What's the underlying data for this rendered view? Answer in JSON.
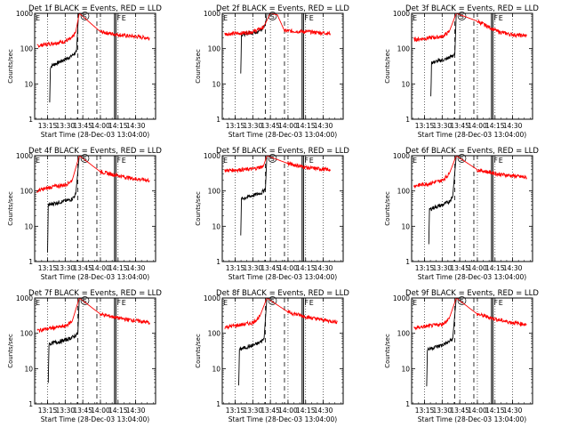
{
  "figure": {
    "time_tick_labels": [
      "13:15",
      "13:30",
      "13:45",
      "14:00",
      "14:15",
      "14:30"
    ],
    "time_tick_values": [
      13.25,
      13.5,
      13.75,
      14.0,
      14.25,
      14.5
    ],
    "y_tick_labels": [
      "1",
      "10",
      "100",
      "1000"
    ],
    "y_tick_values": [
      1,
      10,
      100,
      1000
    ],
    "ylabel": "Counts/sec",
    "xlabel": "Start Time (28-Dec-03 13:04:00)",
    "annotations": {
      "S": 13.78,
      "F1": 14.2,
      "F2": 14.22,
      "E": 14.3
    },
    "colors": {
      "events": "#000000",
      "lld": "#ff0000",
      "axes": "#000000",
      "background": "#ffffff"
    }
  },
  "chart_data": [
    {
      "type": "line",
      "title": "Det 1f BLACK = Events, RED = LLD",
      "xlabel": "Start Time (28-Dec-03 13:04:00)",
      "ylabel": "Counts/sec",
      "xlim": [
        13.067,
        14.783
      ],
      "ylim": [
        1,
        1000
      ],
      "yscale": "log",
      "series": [
        {
          "name": "Events",
          "color": "#000000",
          "x": [
            13.28,
            13.29,
            13.33,
            13.4,
            13.45,
            13.5,
            13.58,
            13.62,
            13.66,
            13.69
          ],
          "y": [
            3,
            30,
            35,
            40,
            45,
            50,
            60,
            70,
            80,
            1000
          ]
        },
        {
          "name": "LLD",
          "color": "#ff0000",
          "x": [
            13.1,
            13.3,
            13.5,
            13.6,
            13.65,
            13.7,
            14.0,
            14.3,
            14.5,
            14.7
          ],
          "y": [
            120,
            140,
            160,
            200,
            300,
            1000,
            300,
            240,
            220,
            200
          ]
        }
      ]
    },
    {
      "type": "line",
      "title": "Det 2f BLACK = Events, RED = LLD",
      "xlabel": "Start Time (28-Dec-03 13:04:00)",
      "ylabel": "Counts/sec",
      "xlim": [
        13.067,
        14.783
      ],
      "ylim": [
        1,
        1000
      ],
      "yscale": "log",
      "series": [
        {
          "name": "Events",
          "color": "#000000",
          "x": [
            13.33,
            13.34,
            13.45,
            13.55,
            13.63,
            13.68,
            13.7
          ],
          "y": [
            20,
            250,
            280,
            300,
            350,
            500,
            1000
          ]
        },
        {
          "name": "LLD",
          "color": "#ff0000",
          "x": [
            13.1,
            13.3,
            13.5,
            13.65,
            13.75,
            13.85,
            13.95,
            14.3,
            14.6
          ],
          "y": [
            260,
            270,
            300,
            400,
            1000,
            900,
            320,
            300,
            270
          ]
        }
      ]
    },
    {
      "type": "line",
      "title": "Det 3f BLACK = Events, RED = LLD",
      "xlabel": "Start Time (28-Dec-03 13:04:00)",
      "ylabel": "Counts/sec",
      "xlim": [
        13.067,
        14.783
      ],
      "ylim": [
        1,
        1000
      ],
      "yscale": "log",
      "series": [
        {
          "name": "Events",
          "color": "#000000",
          "x": [
            13.34,
            13.35,
            13.45,
            13.55,
            13.63,
            13.68,
            13.7
          ],
          "y": [
            4,
            40,
            45,
            50,
            60,
            70,
            1000
          ]
        },
        {
          "name": "LLD",
          "color": "#ff0000",
          "x": [
            13.1,
            13.3,
            13.5,
            13.6,
            13.7,
            14.0,
            14.3,
            14.5,
            14.7
          ],
          "y": [
            180,
            200,
            220,
            300,
            1000,
            600,
            300,
            250,
            230
          ]
        }
      ]
    },
    {
      "type": "line",
      "title": "Det 4f BLACK = Events, RED = LLD",
      "xlabel": "Start Time (28-Dec-03 13:04:00)",
      "ylabel": "Counts/sec",
      "xlim": [
        13.067,
        14.783
      ],
      "ylim": [
        1,
        1000
      ],
      "yscale": "log",
      "series": [
        {
          "name": "Events",
          "color": "#000000",
          "x": [
            13.25,
            13.26,
            13.35,
            13.45,
            13.55,
            13.6,
            13.65,
            13.7
          ],
          "y": [
            2,
            40,
            45,
            50,
            55,
            60,
            80,
            1000
          ]
        },
        {
          "name": "LLD",
          "color": "#ff0000",
          "x": [
            13.1,
            13.3,
            13.5,
            13.6,
            13.7,
            14.0,
            14.3,
            14.5,
            14.7
          ],
          "y": [
            100,
            130,
            150,
            200,
            1000,
            350,
            260,
            220,
            200
          ]
        }
      ]
    },
    {
      "type": "line",
      "title": "Det 5f BLACK = Events, RED = LLD",
      "xlabel": "Start Time (28-Dec-03 13:04:00)",
      "ylabel": "Counts/sec",
      "xlim": [
        13.067,
        14.783
      ],
      "ylim": [
        1,
        1000
      ],
      "yscale": "log",
      "series": [
        {
          "name": "Events",
          "color": "#000000",
          "x": [
            13.33,
            13.34,
            13.45,
            13.55,
            13.63,
            13.68,
            13.7
          ],
          "y": [
            5,
            60,
            70,
            80,
            90,
            120,
            1000
          ]
        },
        {
          "name": "LLD",
          "color": "#ff0000",
          "x": [
            13.1,
            13.3,
            13.5,
            13.65,
            13.7,
            14.0,
            14.3,
            14.6
          ],
          "y": [
            380,
            400,
            420,
            500,
            1000,
            600,
            450,
            400
          ]
        }
      ]
    },
    {
      "type": "line",
      "title": "Det 6f BLACK = Events, RED = LLD",
      "xlabel": "Start Time (28-Dec-03 13:04:00)",
      "ylabel": "Counts/sec",
      "xlim": [
        13.067,
        14.783
      ],
      "ylim": [
        1,
        1000
      ],
      "yscale": "log",
      "series": [
        {
          "name": "Events",
          "color": "#000000",
          "x": [
            13.31,
            13.32,
            13.4,
            13.5,
            13.6,
            13.65,
            13.7
          ],
          "y": [
            3,
            30,
            35,
            40,
            50,
            70,
            1000
          ]
        },
        {
          "name": "LLD",
          "color": "#ff0000",
          "x": [
            13.1,
            13.3,
            13.5,
            13.6,
            13.7,
            14.0,
            14.3,
            14.5,
            14.7
          ],
          "y": [
            140,
            160,
            200,
            300,
            1000,
            400,
            300,
            270,
            240
          ]
        }
      ]
    },
    {
      "type": "line",
      "title": "Det 7f BLACK = Events, RED = LLD",
      "xlabel": "Start Time (28-Dec-03 13:04:00)",
      "ylabel": "Counts/sec",
      "xlim": [
        13.067,
        14.783
      ],
      "ylim": [
        1,
        1000
      ],
      "yscale": "log",
      "series": [
        {
          "name": "Events",
          "color": "#000000",
          "x": [
            13.26,
            13.27,
            13.35,
            13.45,
            13.55,
            13.62,
            13.68,
            13.7
          ],
          "y": [
            4,
            50,
            55,
            60,
            70,
            80,
            100,
            1000
          ]
        },
        {
          "name": "LLD",
          "color": "#ff0000",
          "x": [
            13.1,
            13.3,
            13.5,
            13.6,
            13.7,
            14.0,
            14.3,
            14.5,
            14.7
          ],
          "y": [
            120,
            140,
            160,
            220,
            1000,
            350,
            260,
            230,
            200
          ]
        }
      ]
    },
    {
      "type": "line",
      "title": "Det 8f BLACK = Events, RED = LLD",
      "xlabel": "Start Time (28-Dec-03 13:04:00)",
      "ylabel": "Counts/sec",
      "xlim": [
        13.067,
        14.783
      ],
      "ylim": [
        1,
        1000
      ],
      "yscale": "log",
      "series": [
        {
          "name": "Events",
          "color": "#000000",
          "x": [
            13.3,
            13.31,
            13.4,
            13.5,
            13.6,
            13.66,
            13.7
          ],
          "y": [
            3,
            35,
            40,
            45,
            55,
            70,
            1000
          ]
        },
        {
          "name": "LLD",
          "color": "#ff0000",
          "x": [
            13.1,
            13.3,
            13.5,
            13.6,
            13.7,
            14.0,
            14.3,
            14.5,
            14.7
          ],
          "y": [
            150,
            170,
            200,
            300,
            1000,
            400,
            280,
            240,
            210
          ]
        }
      ]
    },
    {
      "type": "line",
      "title": "Det 9f BLACK = Events, RED = LLD",
      "xlabel": "Start Time (28-Dec-03 13:04:00)",
      "ylabel": "Counts/sec",
      "xlim": [
        13.067,
        14.783
      ],
      "ylim": [
        1,
        1000
      ],
      "yscale": "log",
      "series": [
        {
          "name": "Events",
          "color": "#000000",
          "x": [
            13.28,
            13.29,
            13.38,
            13.48,
            13.58,
            13.65,
            13.7
          ],
          "y": [
            3,
            35,
            40,
            45,
            55,
            70,
            1000
          ]
        },
        {
          "name": "LLD",
          "color": "#ff0000",
          "x": [
            13.1,
            13.3,
            13.5,
            13.6,
            13.7,
            14.0,
            14.3,
            14.5,
            14.7
          ],
          "y": [
            140,
            160,
            180,
            260,
            1000,
            350,
            240,
            200,
            180
          ]
        }
      ]
    }
  ]
}
